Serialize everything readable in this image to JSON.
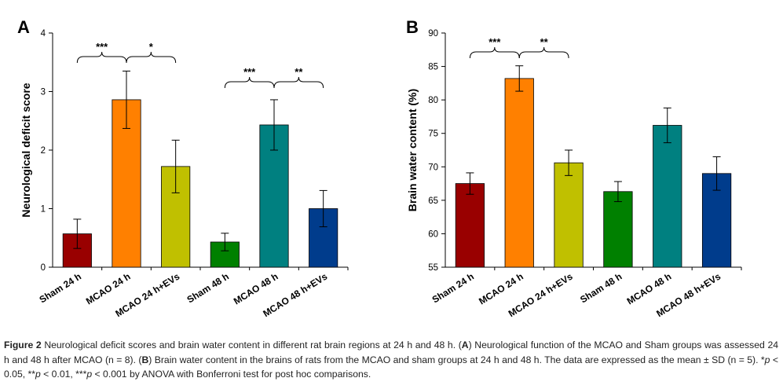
{
  "figure": {
    "caption": {
      "figure_label": "Figure 2",
      "part1": " Neurological deficit scores and brain water content in different rat brain regions at 24 h and 48 h. (",
      "a_label": "A",
      "part2": ") Neurological function of the MCAO and Sham groups was assessed 24 h and 48 h after MCAO (n = 8). (",
      "b_label": "B",
      "part3": ") Brain water content in the brains of rats from the MCAO and sham groups at 24 h and 48 h. The data are expressed as the mean ± SD (n = 5). *",
      "p1": "p",
      "part4": " < 0.05, **",
      "p2": "p",
      "part5": " < 0.01, ***",
      "p3": "p",
      "part6": " < 0.001 by ANOVA with Bonferroni test for post hoc comparisons."
    }
  },
  "chart_data": [
    {
      "panel_label": "A",
      "type": "bar",
      "ylabel": "Neurological deficit score",
      "ylim": [
        0,
        4
      ],
      "yticks": [
        "0",
        "1",
        "2",
        "3",
        "4"
      ],
      "categories": [
        "Sham 24 h",
        "MCAO 24 h",
        "MCAO 24 h+EVs",
        "Sham 48 h",
        "MCAO 48 h",
        "MCAO 48 h+EVs"
      ],
      "values": [
        0.57,
        2.86,
        1.72,
        0.43,
        2.43,
        1.0
      ],
      "errors": [
        0.25,
        0.49,
        0.45,
        0.15,
        0.43,
        0.31
      ],
      "colors": [
        "#990000",
        "#ff8000",
        "#c0c000",
        "#008000",
        "#008080",
        "#003c8c"
      ],
      "significance": [
        {
          "from": 0,
          "to": 1,
          "label": "***"
        },
        {
          "from": 1,
          "to": 2,
          "label": "*"
        },
        {
          "from": 3,
          "to": 4,
          "label": "***"
        },
        {
          "from": 4,
          "to": 5,
          "label": "**"
        }
      ]
    },
    {
      "panel_label": "B",
      "type": "bar",
      "ylabel": "Brain water content (%)",
      "ylim": [
        55,
        90
      ],
      "yticks": [
        "55",
        "60",
        "65",
        "70",
        "75",
        "80",
        "85",
        "90"
      ],
      "categories": [
        "Sham 24 h",
        "MCAO 24 h",
        "MCAO 24 h+EVs",
        "Sham 48 h",
        "MCAO 48 h",
        "MCAO 48 h+EVs"
      ],
      "values": [
        67.5,
        83.2,
        70.6,
        66.3,
        76.2,
        69.0
      ],
      "errors": [
        1.6,
        1.9,
        1.9,
        1.5,
        2.6,
        2.5
      ],
      "colors": [
        "#990000",
        "#ff8000",
        "#c0c000",
        "#008000",
        "#008080",
        "#003c8c"
      ],
      "significance": [
        {
          "from": 0,
          "to": 1,
          "label": "***"
        },
        {
          "from": 1,
          "to": 2,
          "label": "**"
        }
      ]
    }
  ]
}
